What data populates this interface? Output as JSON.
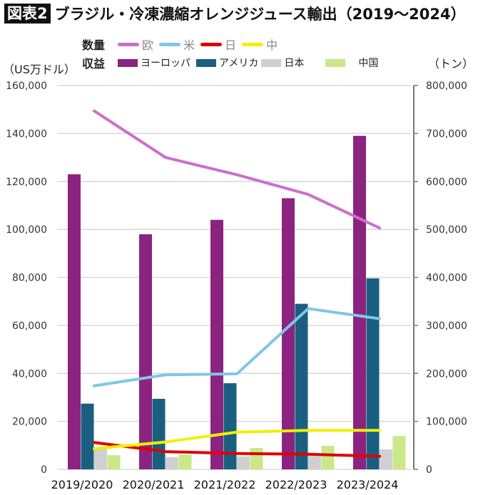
{
  "title": {
    "badge": "図表2",
    "text": "ブラジル・冷凍濃縮オレンジジュース輸出（2019〜2024）"
  },
  "legend": {
    "volume_label": "数量",
    "revenue_label": "収益",
    "volume_items": [
      {
        "label": "欧",
        "color": "#cc6fcc"
      },
      {
        "label": "米",
        "color": "#7ec8e3"
      },
      {
        "label": "日",
        "color": "#e00000"
      },
      {
        "label": "中",
        "color": "#f0f000"
      }
    ],
    "revenue_items": [
      {
        "label": "ヨーロッパ",
        "color": "#8b2380"
      },
      {
        "label": "アメリカ",
        "color": "#1a5f80"
      },
      {
        "label": "日本",
        "color": "#d0d0d0"
      },
      {
        "label": "中国",
        "color": "#c8e88a"
      }
    ]
  },
  "chart_data": {
    "type": "bar+line",
    "categories": [
      "2019/2020",
      "2020/2021",
      "2021/2022",
      "2022/2023",
      "2023/2024"
    ],
    "ylabel": "（US万ドル）",
    "y2label": "（トン）",
    "ylim": [
      0,
      160000
    ],
    "y2lim": [
      0,
      800000
    ],
    "yticks": [
      "0",
      "20,000",
      "40,000",
      "60,000",
      "80,000",
      "100,000",
      "120,000",
      "140,000",
      "160,000"
    ],
    "y2ticks": [
      "0",
      "100,000",
      "200,000",
      "300,000",
      "400,000",
      "500,000",
      "600,000",
      "700,000",
      "800,000"
    ],
    "grid": true,
    "bar_series": [
      {
        "name": "ヨーロッパ",
        "color": "#8b2380",
        "values": [
          123000,
          98000,
          104000,
          113000,
          139000
        ]
      },
      {
        "name": "アメリカ",
        "color": "#1a5f80",
        "values": [
          27400,
          29400,
          35900,
          69000,
          79600
        ]
      },
      {
        "name": "日本",
        "color": "#d0d0d0",
        "values": [
          8500,
          5100,
          5400,
          5600,
          8300
        ]
      },
      {
        "name": "中国",
        "color": "#c8e88a",
        "values": [
          5900,
          6200,
          8900,
          9800,
          13900
        ]
      }
    ],
    "line_series": [
      {
        "name": "欧",
        "color": "#cc6fcc",
        "axis": "right",
        "values": [
          747000,
          650000,
          614000,
          573000,
          503000
        ]
      },
      {
        "name": "米",
        "color": "#7ec8e3",
        "axis": "right",
        "values": [
          174000,
          197000,
          199000,
          335000,
          314000
        ]
      },
      {
        "name": "日",
        "color": "#e00000",
        "axis": "right",
        "values": [
          56000,
          37000,
          33000,
          31600,
          27200
        ]
      },
      {
        "name": "中",
        "color": "#f0f000",
        "axis": "right",
        "values": [
          43000,
          57000,
          77600,
          81200,
          81200
        ]
      }
    ]
  }
}
